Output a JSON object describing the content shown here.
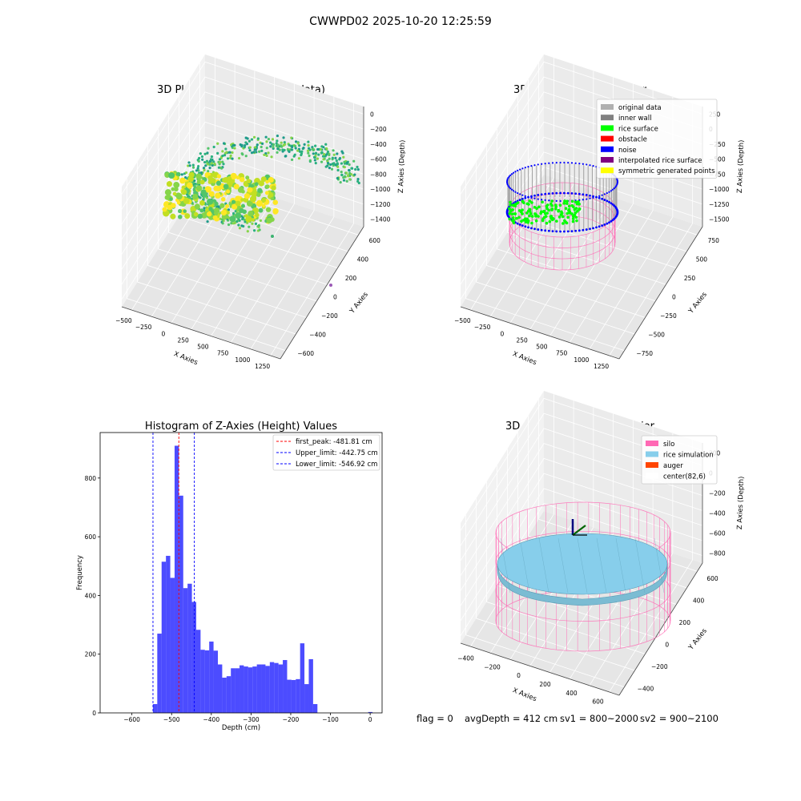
{
  "figure": {
    "suptitle": "CWWPD02 2025-10-20 12:25:59",
    "status_line": {
      "flag": "flag = 0",
      "avg_depth": "avgDepth = 412 cm",
      "sv1": "sv1 = 800~2000",
      "sv2": "sv2 = 900~2100"
    }
  },
  "colors": {
    "hist_bar": "#0000ff",
    "first_peak_line": "#ff0000",
    "limit_line": "#0000ff",
    "silo": "#ff69b4",
    "rice_simulation": "#87ceeb",
    "auger": "#ff4500",
    "original_data": "#b0b0b0",
    "inner_wall": "#808080",
    "rice_surface": "#00ff00",
    "obstacle": "#ff0000",
    "noise": "#0000ff",
    "interpolated_rice_surface": "#800080",
    "symmetric_generated_points": "#ffff00"
  },
  "chart_data": [
    {
      "type": "scatter",
      "projection": "3d",
      "title": "3D Plot of Silo Interior(row data)",
      "xlabel": "X Axies",
      "ylabel": "Y Axies",
      "zlabel": "Z Axies (Depth)",
      "xticks": [
        "−500",
        "−250",
        "0",
        "250",
        "500",
        "750",
        "1000",
        "1250"
      ],
      "yticks": [
        "−600",
        "−400",
        "−200",
        "0",
        "200",
        "400",
        "600"
      ],
      "zticks": [
        "−1400",
        "−1200",
        "−1000",
        "−800",
        "−600",
        "−400",
        "−200",
        "0"
      ],
      "xlim": [
        -600,
        1300
      ],
      "ylim": [
        -650,
        650
      ],
      "zlim": [
        -1450,
        50
      ],
      "colormap": "viridis"
    },
    {
      "type": "scatter",
      "projection": "3d",
      "title": "3D classify of Silo Interior",
      "xlabel": "X Axies",
      "ylabel": "Y Axies",
      "zlabel": "Z Axies (Depth)",
      "xticks": [
        "−500",
        "−250",
        "0",
        "250",
        "500",
        "750",
        "1000",
        "1250"
      ],
      "yticks": [
        "−750",
        "−500",
        "−250",
        "0",
        "250",
        "500",
        "750"
      ],
      "zticks": [
        "−1500",
        "−1250",
        "−1000",
        "−750",
        "−500",
        "−250",
        "0",
        "250"
      ],
      "legend_position": "upper right",
      "legend": [
        {
          "label": "original data",
          "color": "#b0b0b0"
        },
        {
          "label": "inner wall",
          "color": "#808080"
        },
        {
          "label": "rice surface",
          "color": "#00ff00"
        },
        {
          "label": "obstacle",
          "color": "#ff0000"
        },
        {
          "label": "noise",
          "color": "#0000ff"
        },
        {
          "label": "interpolated rice surface",
          "color": "#800080"
        },
        {
          "label": "symmetric generated points",
          "color": "#ffff00"
        }
      ]
    },
    {
      "type": "bar",
      "title": "Histogram of Z-Axies (Height) Values",
      "xlabel": "Depth (cm)",
      "ylabel": "Frequency",
      "xlim": [
        -680,
        30
      ],
      "ylim": [
        0,
        955
      ],
      "xticks": [
        -600,
        -500,
        -400,
        -300,
        -200,
        -100,
        0
      ],
      "xtick_labels": [
        "−600",
        "−500",
        "−400",
        "−300",
        "−200",
        "−100",
        "0"
      ],
      "yticks": [
        0,
        200,
        400,
        600,
        800
      ],
      "ytick_labels": [
        "0",
        "200",
        "400",
        "600",
        "800"
      ],
      "bin_start": -547,
      "bin_width": 10.9,
      "counts": [
        30,
        270,
        515,
        535,
        460,
        910,
        740,
        425,
        440,
        378,
        283,
        215,
        213,
        243,
        212,
        165,
        120,
        125,
        152,
        152,
        162,
        158,
        155,
        158,
        165,
        165,
        160,
        173,
        170,
        165,
        180,
        113,
        112,
        115,
        237,
        98,
        183,
        30
      ],
      "extra_bins": [
        {
          "x": -5,
          "count": 3
        }
      ],
      "vlines": [
        {
          "x": -481.81,
          "style": "first_peak"
        },
        {
          "x": -442.75,
          "style": "limit"
        },
        {
          "x": -546.92,
          "style": "limit"
        }
      ],
      "legend_position": "upper right",
      "legend": [
        {
          "label": "first_peak: -481.81 cm",
          "color": "#ff0000"
        },
        {
          "label": "Upper_limit: -442.75 cm",
          "color": "#0000ff"
        },
        {
          "label": "Lower_limit: -546.92 cm",
          "color": "#0000ff"
        }
      ]
    },
    {
      "type": "scatter",
      "projection": "3d",
      "title": "3D simulation of Silo Interior",
      "xlabel": "X Axies",
      "ylabel": "Y Axies",
      "zlabel": "Z Axies (Depth)",
      "xticks": [
        "−400",
        "−200",
        "0",
        "200",
        "400",
        "600"
      ],
      "yticks": [
        "−400",
        "−200",
        "0",
        "200",
        "400",
        "600"
      ],
      "zticks": [
        "−800",
        "−600",
        "−400",
        "−200",
        "0",
        "200"
      ],
      "legend_position": "upper right",
      "legend": [
        {
          "label": "silo",
          "color": "#ff69b4"
        },
        {
          "label": "rice simulation",
          "color": "#87ceeb"
        },
        {
          "label": "auger",
          "color": "#ff4500"
        },
        {
          "label": "center(82,6)",
          "color": "#ffffff"
        }
      ]
    }
  ]
}
